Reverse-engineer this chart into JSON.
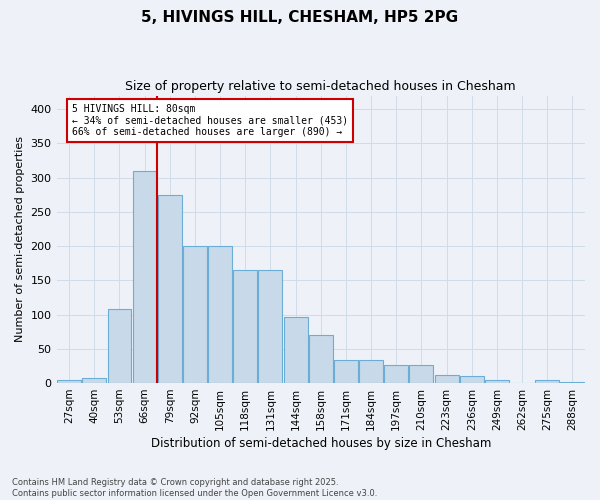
{
  "title": "5, HIVINGS HILL, CHESHAM, HP5 2PG",
  "subtitle": "Size of property relative to semi-detached houses in Chesham",
  "xlabel": "Distribution of semi-detached houses by size in Chesham",
  "ylabel": "Number of semi-detached properties",
  "categories": [
    "27sqm",
    "40sqm",
    "53sqm",
    "66sqm",
    "79sqm",
    "92sqm",
    "105sqm",
    "118sqm",
    "131sqm",
    "144sqm",
    "158sqm",
    "171sqm",
    "184sqm",
    "197sqm",
    "210sqm",
    "223sqm",
    "236sqm",
    "249sqm",
    "262sqm",
    "275sqm",
    "288sqm"
  ],
  "values": [
    5,
    8,
    108,
    310,
    275,
    200,
    200,
    165,
    165,
    97,
    70,
    33,
    33,
    26,
    26,
    12,
    11,
    4,
    0,
    5,
    2
  ],
  "bar_color": "#c8d9ea",
  "bar_edge_color": "#6aaed6",
  "grid_color": "#d0dce8",
  "background_color": "#eef2f8",
  "vline_color": "#cc0000",
  "annotation_box_edge": "#cc0000",
  "annotation_text": "5 HIVINGS HILL: 80sqm\n← 34% of semi-detached houses are smaller (453)\n66% of semi-detached houses are larger (890) →",
  "property_bin_index": 3,
  "footnote": "Contains HM Land Registry data © Crown copyright and database right 2025.\nContains public sector information licensed under the Open Government Licence v3.0.",
  "ylim": [
    0,
    420
  ],
  "yticks": [
    0,
    50,
    100,
    150,
    200,
    250,
    300,
    350,
    400
  ]
}
